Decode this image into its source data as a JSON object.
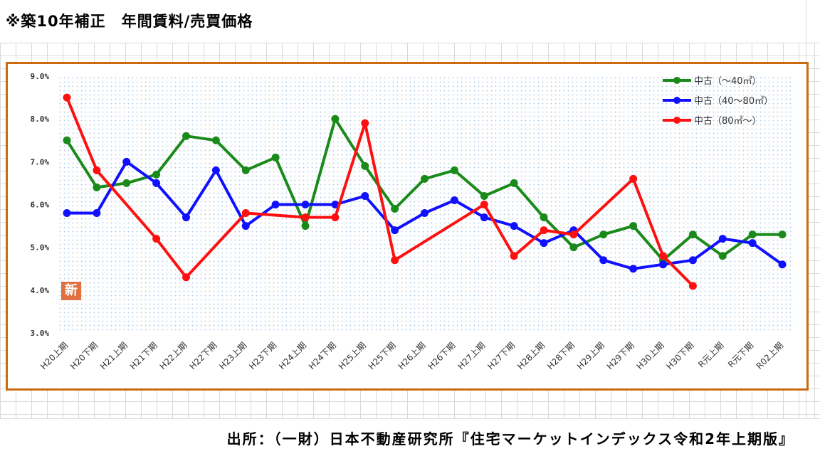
{
  "page": {
    "title": "※築10年補正　年間賃料/売買価格",
    "source": "出所：（一財）日本不動産研究所『住宅マーケットインデックス令和2年上期版』",
    "badge": "新"
  },
  "chart_data": {
    "type": "line",
    "title": "",
    "xlabel": "",
    "ylabel": "",
    "ylim": [
      3.0,
      9.0
    ],
    "yticks": [
      "9.0%",
      "8.0%",
      "7.0%",
      "6.0%",
      "5.0%",
      "4.0%",
      "3.0%"
    ],
    "grid": true,
    "legend_position": "top-right",
    "categories": [
      "H20上期",
      "H20下期",
      "H21上期",
      "H21下期",
      "H22上期",
      "H22下期",
      "H23上期",
      "H23下期",
      "H24上期",
      "H24下期",
      "H25上期",
      "H25下期",
      "H26上期",
      "H26下期",
      "H27上期",
      "H27下期",
      "H28上期",
      "H28下期",
      "H29上期",
      "H29下期",
      "H30上期",
      "H30下期",
      "R元上期",
      "R元下期",
      "R02上期"
    ],
    "series": [
      {
        "name": "中古（～40㎡）",
        "color": "#1a8a1a",
        "values": [
          7.5,
          6.4,
          6.5,
          6.7,
          7.6,
          7.5,
          6.8,
          7.1,
          5.5,
          8.0,
          6.9,
          5.9,
          6.6,
          6.8,
          6.2,
          6.5,
          5.7,
          5.0,
          5.3,
          5.5,
          4.7,
          5.3,
          4.8,
          5.3,
          5.3
        ]
      },
      {
        "name": "中古（40～80㎡）",
        "color": "#1010ff",
        "values": [
          5.8,
          5.8,
          7.0,
          6.5,
          5.7,
          6.8,
          5.5,
          6.0,
          6.0,
          6.0,
          6.2,
          5.4,
          5.8,
          6.1,
          5.7,
          5.5,
          5.1,
          5.4,
          4.7,
          4.5,
          4.6,
          4.7,
          5.2,
          5.1,
          4.6
        ]
      },
      {
        "name": "中古（80㎡～）",
        "color": "#ff1010",
        "points": [
          [
            0,
            8.5
          ],
          [
            1,
            6.8
          ],
          [
            3,
            5.2
          ],
          [
            4,
            4.3
          ],
          [
            6,
            5.8
          ],
          [
            8,
            5.7
          ],
          [
            9,
            5.7
          ],
          [
            10,
            7.9
          ],
          [
            11,
            4.7
          ],
          [
            14,
            6.0
          ],
          [
            15,
            4.8
          ],
          [
            16,
            5.4
          ],
          [
            17,
            5.3
          ],
          [
            19,
            6.6
          ],
          [
            20,
            4.8
          ],
          [
            21,
            4.1
          ]
        ]
      }
    ]
  }
}
